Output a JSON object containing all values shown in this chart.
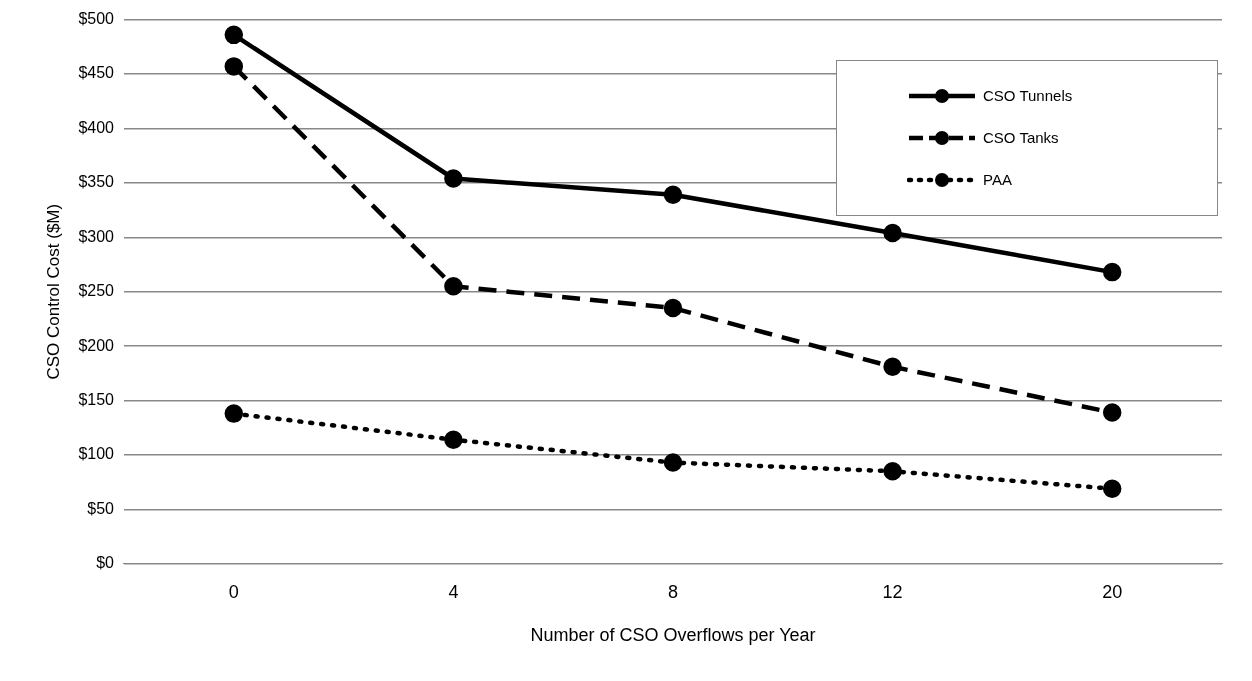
{
  "chart_data": {
    "type": "line",
    "xlabel": "Number of CSO Overflows per Year",
    "ylabel": "CSO Control Cost ($M)",
    "categories": [
      "0",
      "4",
      "8",
      "12",
      "20"
    ],
    "series": [
      {
        "name": "CSO Tunnels",
        "color": "#000000",
        "line_style": "solid",
        "values": [
          486,
          354,
          339,
          304,
          268
        ]
      },
      {
        "name": "CSO Tanks",
        "color": "#000000",
        "line_style": "dashed",
        "values": [
          457,
          255,
          235,
          181,
          139
        ]
      },
      {
        "name": "PAA",
        "color": "#000000",
        "line_style": "dotted",
        "values": [
          138,
          114,
          93,
          85,
          69
        ]
      }
    ],
    "ylim": [
      0,
      500
    ],
    "yticks": [
      {
        "value": 0,
        "label": "$0"
      },
      {
        "value": 50,
        "label": "$50"
      },
      {
        "value": 100,
        "label": "$100"
      },
      {
        "value": 150,
        "label": "$150"
      },
      {
        "value": 200,
        "label": "$200"
      },
      {
        "value": 250,
        "label": "$250"
      },
      {
        "value": 300,
        "label": "$300"
      },
      {
        "value": 350,
        "label": "$350"
      },
      {
        "value": 400,
        "label": "$400"
      },
      {
        "value": 450,
        "label": "$450"
      },
      {
        "value": 500,
        "label": "$500"
      }
    ],
    "grid": "y",
    "legend": "top right",
    "marker": "circle"
  }
}
